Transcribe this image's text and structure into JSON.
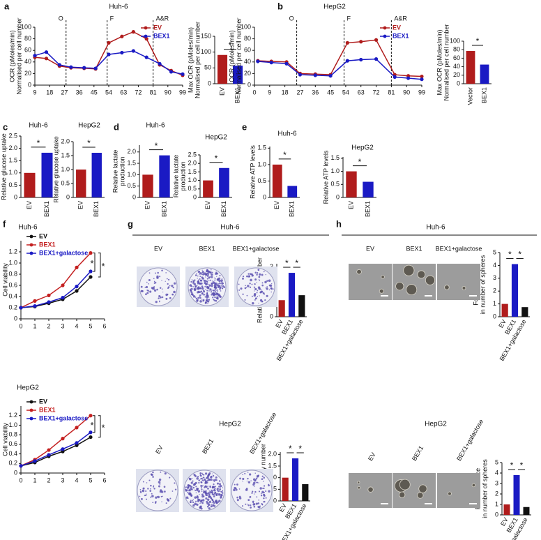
{
  "chart_data": [
    {
      "type": "line",
      "panel": "a",
      "title": "Huh-6",
      "ylabel": [
        "OCR (pMoles/min)",
        "Normalised per cell number"
      ],
      "x": [
        9,
        16,
        24,
        31,
        39,
        46,
        54,
        62,
        69,
        77,
        85,
        92,
        99
      ],
      "series": [
        {
          "name": "EV",
          "color": "#b01c1c",
          "values": [
            48,
            46,
            33,
            30,
            29,
            28,
            73,
            84,
            92,
            80,
            35,
            25,
            17
          ]
        },
        {
          "name": "BEX1",
          "color": "#1a1ac4",
          "values": [
            51,
            57,
            35,
            31,
            30,
            29,
            53,
            56,
            59,
            48,
            37,
            23,
            19
          ]
        }
      ],
      "xlim": [
        9,
        99
      ],
      "xticks": [
        9,
        18,
        27,
        36,
        45,
        54,
        63,
        72,
        81,
        90,
        99
      ],
      "ylim": [
        0,
        100
      ],
      "yticks": [
        0,
        20,
        40,
        60,
        80,
        100
      ],
      "vlines": [
        {
          "x": 28,
          "label": "O"
        },
        {
          "x": 53,
          "label": "F"
        },
        {
          "x": 81,
          "label": "A&R"
        }
      ],
      "legend": "upper right"
    },
    {
      "type": "bar",
      "ylabel": [
        "Max OCR (pMoles/min)",
        "Normalised per cell number"
      ],
      "categories": [
        "EV",
        "BEX1"
      ],
      "values": [
        91,
        57
      ],
      "colors": [
        "#b01c1c",
        "#1a1ac4"
      ],
      "ylim": [
        0,
        150
      ],
      "yticks": [
        0,
        50,
        100,
        150
      ],
      "annotations": [
        "*"
      ]
    },
    {
      "type": "line",
      "panel": "b",
      "title": "HepG2",
      "ylabel": [
        "OCR (pMoles/min)",
        "Normalised per cell number"
      ],
      "x": [
        2,
        10,
        19,
        27,
        36,
        45,
        55,
        63,
        72,
        83,
        91,
        99
      ],
      "series": [
        {
          "name": "EV",
          "color": "#b01c1c",
          "values": [
            42,
            41,
            40,
            20,
            19,
            18,
            73,
            75,
            78,
            18,
            16,
            15
          ]
        },
        {
          "name": "BEX1",
          "color": "#1a1ac4",
          "values": [
            41,
            39,
            37,
            18,
            17,
            16,
            42,
            44,
            45,
            14,
            12,
            10
          ]
        }
      ],
      "xlim": [
        0,
        99
      ],
      "xticks": [
        0,
        9,
        18,
        27,
        36,
        45,
        54,
        63,
        72,
        81,
        90,
        99
      ],
      "ylim": [
        0,
        100
      ],
      "yticks": [
        0,
        20,
        40,
        60,
        80,
        100
      ],
      "vlines": [
        {
          "x": 25,
          "label": "O"
        },
        {
          "x": 53,
          "label": "F"
        },
        {
          "x": 81,
          "label": "A&R"
        }
      ],
      "legend": "upper right"
    },
    {
      "type": "bar",
      "ylabel": [
        "Max OCR (pMoles/min)",
        "Normalised per cell number"
      ],
      "categories": [
        "Vector",
        "BEX1"
      ],
      "values": [
        77,
        45
      ],
      "colors": [
        "#b01c1c",
        "#1a1ac4"
      ],
      "ylim": [
        0,
        100
      ],
      "yticks": [
        0,
        20,
        40,
        60,
        80,
        100
      ],
      "annotations": [
        "*"
      ]
    },
    {
      "type": "bar",
      "panel": "c",
      "title": "Huh-6",
      "ylabel": [
        "Relative glucose uptake"
      ],
      "categories": [
        "EV",
        "BEX1"
      ],
      "values": [
        1.0,
        1.82
      ],
      "colors": [
        "#b01c1c",
        "#1a1ac4"
      ],
      "ylim": [
        0,
        2.5
      ],
      "yticks": [
        0,
        0.5,
        {
          "value": 1,
          "label": "1.0"
        },
        1.5,
        {
          "value": 2,
          "label": "2.0"
        },
        2.5
      ],
      "annotations": [
        "*"
      ]
    },
    {
      "type": "bar",
      "title": "HepG2",
      "ylabel": [
        "Relative glucose uptake"
      ],
      "categories": [
        "EV",
        "BEX1"
      ],
      "values": [
        1.0,
        1.6
      ],
      "colors": [
        "#b01c1c",
        "#1a1ac4"
      ],
      "ylim": [
        0,
        2
      ],
      "yticks": [
        0,
        0.5,
        {
          "value": 1,
          "label": "1.0"
        },
        1.5,
        {
          "value": 2,
          "label": "2.0"
        }
      ],
      "annotations": [
        "*"
      ]
    },
    {
      "type": "bar",
      "panel": "d",
      "title": "Huh-6",
      "ylabel": [
        "Relative lactate",
        "production"
      ],
      "categories": [
        "EV",
        "BEX1"
      ],
      "values": [
        1.0,
        1.85
      ],
      "colors": [
        "#b01c1c",
        "#1a1ac4"
      ],
      "ylim": [
        0,
        2.3
      ],
      "yticks": [
        0,
        0.5,
        {
          "value": 1,
          "label": "1.0"
        },
        1.5,
        {
          "value": 2,
          "label": "2.0"
        }
      ],
      "annotations": [
        "*"
      ]
    },
    {
      "type": "bar",
      "title": "HepG2",
      "ylabel": [
        "Relative lactate",
        "production"
      ],
      "categories": [
        "EV",
        "BEX1"
      ],
      "values": [
        1.0,
        1.73
      ],
      "colors": [
        "#b01c1c",
        "#1a1ac4"
      ],
      "ylim": [
        0,
        2.5
      ],
      "yticks": [
        0,
        0.5,
        {
          "value": 1,
          "label": "1.0"
        },
        1.5,
        {
          "value": 2,
          "label": "2.0"
        },
        2.5
      ],
      "annotations": [
        "*"
      ]
    },
    {
      "type": "bar",
      "panel": "e",
      "title": "Huh-6",
      "ylabel": [
        "Relative ATP levels"
      ],
      "categories": [
        "EV",
        "BEX1"
      ],
      "values": [
        1.0,
        0.35
      ],
      "colors": [
        "#b01c1c",
        "#1a1ac4"
      ],
      "ylim": [
        0,
        1.55
      ],
      "yticks": [
        0,
        0.5,
        {
          "value": 1,
          "label": "1.0"
        },
        1.5
      ],
      "annotations": [
        "*"
      ]
    },
    {
      "type": "bar",
      "title": "HepG2",
      "ylabel": [
        "Relative ATP levels"
      ],
      "categories": [
        "EV",
        "BEX1"
      ],
      "values": [
        1.0,
        0.6
      ],
      "colors": [
        "#b01c1c",
        "#1a1ac4"
      ],
      "ylim": [
        0,
        1.55
      ],
      "yticks": [
        0,
        0.5,
        {
          "value": 1,
          "label": "1.0"
        },
        1.5
      ],
      "annotations": [
        "*"
      ]
    },
    {
      "type": "line",
      "panel": "f",
      "title": "Huh-6",
      "ylabel": [
        "Cell viability"
      ],
      "x": [
        0,
        1,
        2,
        3,
        4,
        5
      ],
      "series": [
        {
          "name": "EV",
          "color": "#111111",
          "values": [
            0.2,
            0.22,
            0.28,
            0.35,
            0.5,
            0.75
          ]
        },
        {
          "name": "BEX1",
          "color": "#c42020",
          "values": [
            0.2,
            0.32,
            0.42,
            0.6,
            0.92,
            1.18
          ]
        },
        {
          "name": "BEX1+galactose",
          "color": "#1a1ac4",
          "values": [
            0.2,
            0.23,
            0.3,
            0.38,
            0.58,
            0.85
          ]
        }
      ],
      "xlim": [
        0,
        6
      ],
      "xticks": [
        0,
        1,
        2,
        3,
        4,
        5,
        6
      ],
      "ylim": [
        0,
        1.4
      ],
      "yticks": [
        0,
        0.2,
        0.4,
        0.6,
        0.8,
        {
          "value": 1,
          "label": "1.0"
        },
        1.2
      ],
      "legend": "upper left",
      "annotations": [
        "*",
        "*"
      ]
    },
    {
      "type": "line",
      "title": "HepG2",
      "ylabel": [
        "Cell viability"
      ],
      "x": [
        0,
        1,
        2,
        3,
        4,
        5
      ],
      "series": [
        {
          "name": "EV",
          "color": "#111111",
          "values": [
            0.15,
            0.22,
            0.35,
            0.45,
            0.58,
            0.75
          ]
        },
        {
          "name": "BEX1",
          "color": "#c42020",
          "values": [
            0.15,
            0.28,
            0.48,
            0.72,
            0.95,
            1.2
          ]
        },
        {
          "name": "BEX1+galactose",
          "color": "#1a1ac4",
          "values": [
            0.15,
            0.25,
            0.38,
            0.5,
            0.63,
            0.85
          ]
        }
      ],
      "xlim": [
        0,
        6
      ],
      "xticks": [
        0,
        1,
        2,
        3,
        4,
        5,
        6
      ],
      "ylim": [
        0,
        1.4
      ],
      "yticks": [
        0,
        0.2,
        0.4,
        0.6,
        0.8,
        {
          "value": 1,
          "label": "1.0"
        },
        1.2
      ],
      "legend": "upper left",
      "annotations": [
        "*",
        "*"
      ]
    },
    {
      "type": "bar",
      "ylabel": [
        "Relative colony number"
      ],
      "categories": [
        "EV",
        "BEX1",
        "BEX1+galactose"
      ],
      "values": [
        1.0,
        2.65,
        1.3
      ],
      "colors": [
        "#b01c1c",
        "#1a1ac4",
        "#111111"
      ],
      "ylim": [
        0,
        3.2
      ],
      "yticks": [
        0,
        1,
        2,
        3
      ],
      "annotations": [
        "*",
        "*"
      ]
    },
    {
      "type": "bar",
      "ylabel": [
        "Relative colony number"
      ],
      "categories": [
        "EV",
        "BEX1",
        "BEX1+galactose"
      ],
      "values": [
        1.0,
        1.83,
        0.72
      ],
      "colors": [
        "#b01c1c",
        "#1a1ac4",
        "#111111"
      ],
      "ylim": [
        0,
        2.1
      ],
      "yticks": [
        0,
        0.5,
        {
          "value": 1,
          "label": "1.0"
        },
        1.5,
        {
          "value": 2,
          "label": "2.0"
        }
      ],
      "annotations": [
        "*",
        "*"
      ]
    },
    {
      "type": "bar",
      "ylabel": [
        "Fold difference",
        "in number of spheres"
      ],
      "categories": [
        "EV",
        "BEX1",
        "BEX1+galactose"
      ],
      "values": [
        1.0,
        4.1,
        0.75
      ],
      "colors": [
        "#b01c1c",
        "#1a1ac4",
        "#111111"
      ],
      "ylim": [
        0,
        5
      ],
      "yticks": [
        0,
        1,
        2,
        3,
        4,
        5
      ],
      "annotations": [
        "*",
        "*"
      ]
    },
    {
      "type": "bar",
      "ylabel": [
        "Fold difference",
        "in number of spheres"
      ],
      "categories": [
        "EV",
        "BEX1",
        "BEX1+galactose"
      ],
      "values": [
        1.0,
        3.8,
        0.75
      ],
      "colors": [
        "#b01c1c",
        "#1a1ac4",
        "#111111"
      ],
      "ylim": [
        0,
        5
      ],
      "yticks": [
        0,
        1,
        2,
        3,
        4,
        5
      ],
      "annotations": [
        "*",
        "*"
      ]
    }
  ],
  "figures": [
    {
      "panel": "g",
      "header": "Huh-6",
      "kind": "colony",
      "labels": [
        "EV",
        "BEX1",
        "BEX1+galactose"
      ]
    },
    {
      "header": "HepG2",
      "kind": "colony",
      "labels": [
        "EV",
        "BEX1",
        "BEX1+galactose"
      ]
    },
    {
      "panel": "h",
      "header": "Huh-6",
      "kind": "sphere",
      "labels": [
        "EV",
        "BEX1",
        "BEX1+galactose"
      ]
    },
    {
      "header": "HepG2",
      "kind": "sphere",
      "labels": [
        "EV",
        "BEX1",
        "BEX1+galactose"
      ]
    }
  ]
}
